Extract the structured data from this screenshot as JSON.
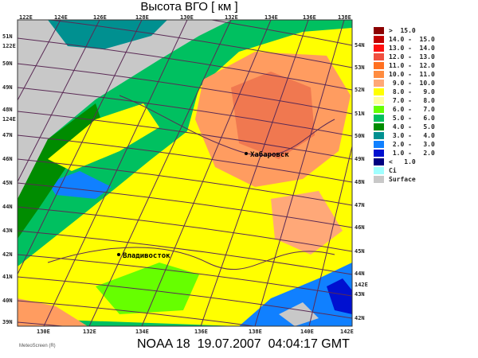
{
  "title": "Высота ВГО [ км ]",
  "footer": "NOAA 18  19.07.2007  04:04:17 GMT",
  "watermark": "MeteoScreen (R)",
  "cities": [
    {
      "name": "Хабаровск"
    },
    {
      "name": "Владивосток"
    }
  ],
  "legend": [
    {
      "label": ">  15.0",
      "color": "#8b0000"
    },
    {
      "label": "14.0 -  15.0",
      "color": "#c00000"
    },
    {
      "label": "13.0 -  14.0",
      "color": "#ff1010"
    },
    {
      "label": "12.0 -  13.0",
      "color": "#f05040"
    },
    {
      "label": "11.0 -  12.0",
      "color": "#ff7020"
    },
    {
      "label": "10.0 -  11.0",
      "color": "#ff8c40"
    },
    {
      "label": " 9.0 -  10.0",
      "color": "#ffa878"
    },
    {
      "label": " 8.0 -   9.0",
      "color": "#ffff00"
    },
    {
      "label": " 7.0 -   8.0",
      "color": "#ffffa0"
    },
    {
      "label": " 6.0 -   7.0",
      "color": "#66ff00"
    },
    {
      "label": " 5.0 -   6.0",
      "color": "#00c060"
    },
    {
      "label": " 4.0 -   5.0",
      "color": "#008c00"
    },
    {
      "label": " 3.0 -   4.0",
      "color": "#009090"
    },
    {
      "label": " 2.0 -   3.0",
      "color": "#1080ff"
    },
    {
      "label": " 1.0 -   2.0",
      "color": "#0010d0"
    },
    {
      "label": "<   1.0",
      "color": "#000080"
    },
    {
      "label": "Ci",
      "color": "#a0ffff"
    },
    {
      "label": "Surface",
      "color": "#c8c8c8"
    }
  ],
  "top_lon_labels": [
    "122E",
    "124E",
    "126E",
    "128E",
    "130E",
    "132E",
    "134E",
    "136E",
    "138E"
  ],
  "bottom_lon_labels": [
    "130E",
    "132E",
    "134E",
    "136E",
    "138E",
    "140E",
    "142E"
  ],
  "left_labels": [
    "51N",
    "122E",
    "50N",
    "49N",
    "48N",
    "124E",
    "47N",
    "46N",
    "45N",
    "44N",
    "43N",
    "42N",
    "41N",
    "40N",
    "39N"
  ],
  "right_labels": [
    "54N",
    "53N",
    "52N",
    "51N",
    "50N",
    "49N",
    "48N",
    "47N",
    "46N",
    "45N",
    "44N",
    "142E",
    "43N",
    "42N"
  ]
}
